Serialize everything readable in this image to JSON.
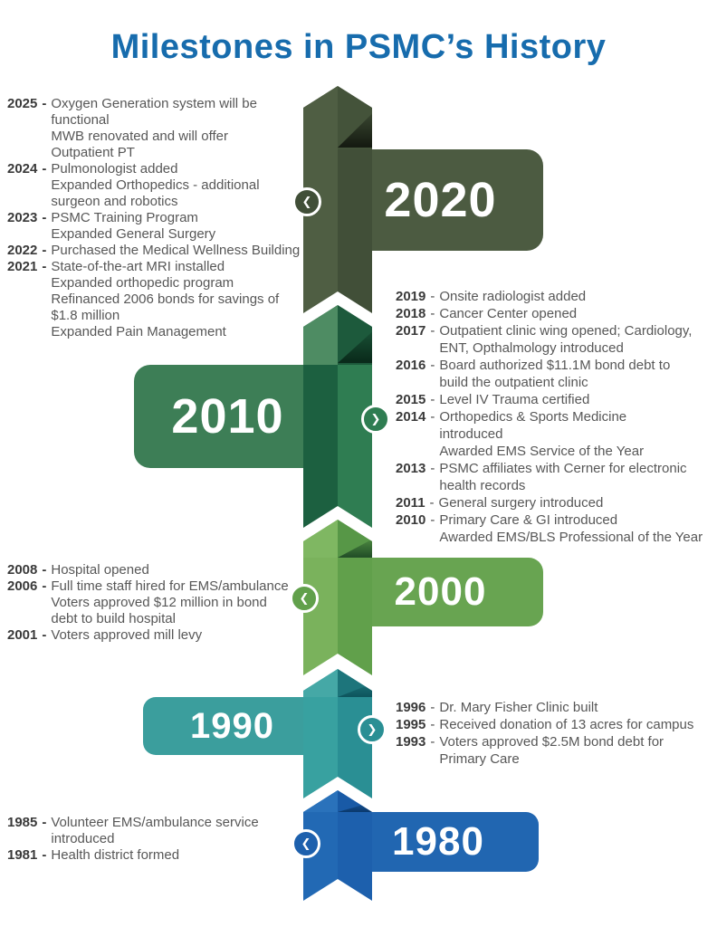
{
  "title": "Milestones in PSMC’s History",
  "title_color": "#176cad",
  "timeline": {
    "decades": [
      {
        "label": "2020",
        "banner_side": "right",
        "chevron": "left",
        "chevron_glyph": "❮",
        "colors": {
          "l": "#4f5e43",
          "r": "#414f38",
          "tl": "#4f5e43",
          "tr": "#44533a",
          "banner": "#4c5b41",
          "fold": "#161c12"
        }
      },
      {
        "label": "2010",
        "banner_side": "left",
        "chevron": "right",
        "chevron_glyph": "❯",
        "colors": {
          "l": "#1c6040",
          "r": "#2f7d52",
          "tl": "#4e8c63",
          "tr": "#1d5a3c",
          "banner": "#3d7e56",
          "fold": "#0a2b1b"
        }
      },
      {
        "label": "2000",
        "banner_side": "right",
        "chevron": "left",
        "chevron_glyph": "❮",
        "colors": {
          "l": "#7ab25c",
          "r": "#61a04b",
          "tl": "#7fb762",
          "tr": "#579747",
          "banner": "#68a451",
          "fold": "#235028"
        }
      },
      {
        "label": "1990",
        "banner_side": "left",
        "chevron": "right",
        "chevron_glyph": "❯",
        "colors": {
          "l": "#38a1a0",
          "r": "#2a8f94",
          "tl": "#45a8a6",
          "tr": "#1d757b",
          "banner": "#3b9e9d",
          "fold": "#0e565e"
        }
      },
      {
        "label": "1980",
        "banner_side": "right",
        "chevron": "left",
        "chevron_glyph": "❮",
        "colors": {
          "l": "#2269b4",
          "r": "#1d60ad",
          "tl": "#2a72bb",
          "tr": "#195aa6",
          "banner": "#2166b1",
          "fold": "#0b3a6e"
        }
      }
    ]
  },
  "milestones": [
    {
      "decade": "2020s",
      "side": "left",
      "entries": [
        {
          "year": "2025",
          "lines": [
            "Oxygen Generation system will be",
            "functional",
            "MWB renovated and will offer",
            "Outpatient PT"
          ]
        },
        {
          "year": "2024",
          "lines": [
            "Pulmonologist added",
            "Expanded Orthopedics - additional",
            "surgeon and robotics"
          ]
        },
        {
          "year": "2023",
          "lines": [
            "PSMC Training Program",
            "Expanded General Surgery"
          ]
        },
        {
          "year": "2022",
          "lines": [
            "Purchased the Medical Wellness Building"
          ]
        },
        {
          "year": "2021",
          "lines": [
            "State-of-the-art MRI installed",
            "Expanded orthopedic program",
            "Refinanced 2006 bonds for savings of",
            "$1.8 million",
            "Expanded Pain Management"
          ]
        }
      ]
    },
    {
      "decade": "2010s",
      "side": "right",
      "entries": [
        {
          "year": "2019",
          "lines": [
            "Onsite radiologist added"
          ]
        },
        {
          "year": "2018",
          "lines": [
            "Cancer Center opened"
          ]
        },
        {
          "year": "2017",
          "lines": [
            "Outpatient clinic wing opened; Cardiology,",
            "ENT, Opthalmology introduced"
          ]
        },
        {
          "year": "2016",
          "lines": [
            "Board authorized $11.1M bond debt to",
            "build the outpatient clinic"
          ]
        },
        {
          "year": "2015",
          "lines": [
            "Level IV Trauma certified"
          ]
        },
        {
          "year": "2014",
          "lines": [
            "Orthopedics & Sports Medicine",
            "introduced",
            "Awarded EMS Service of the Year"
          ]
        },
        {
          "year": "2013",
          "lines": [
            "PSMC affiliates with Cerner for electronic",
            "health records"
          ]
        },
        {
          "year": "2011",
          "lines": [
            "General surgery introduced"
          ]
        },
        {
          "year": "2010",
          "lines": [
            "Primary Care & GI introduced",
            "Awarded EMS/BLS Professional of the Year"
          ]
        }
      ]
    },
    {
      "decade": "2000s",
      "side": "left",
      "entries": [
        {
          "year": "2008",
          "lines": [
            "Hospital opened"
          ]
        },
        {
          "year": "2006",
          "lines": [
            "Full time staff hired for EMS/ambulance",
            "Voters approved $12 million in bond",
            "debt to build hospital"
          ]
        },
        {
          "year": "2001",
          "lines": [
            "Voters approved mill levy"
          ]
        }
      ]
    },
    {
      "decade": "1990s",
      "side": "right",
      "entries": [
        {
          "year": "1996",
          "lines": [
            "Dr. Mary Fisher Clinic built"
          ]
        },
        {
          "year": "1995",
          "lines": [
            "Received donation of 13 acres for campus"
          ]
        },
        {
          "year": "1993",
          "lines": [
            "Voters approved $2.5M bond debt for",
            "Primary Care"
          ]
        }
      ]
    },
    {
      "decade": "1980s",
      "side": "left",
      "entries": [
        {
          "year": "1985",
          "lines": [
            "Volunteer EMS/ambulance service",
            "introduced"
          ]
        },
        {
          "year": "1981",
          "lines": [
            "Health district formed"
          ]
        }
      ]
    }
  ]
}
